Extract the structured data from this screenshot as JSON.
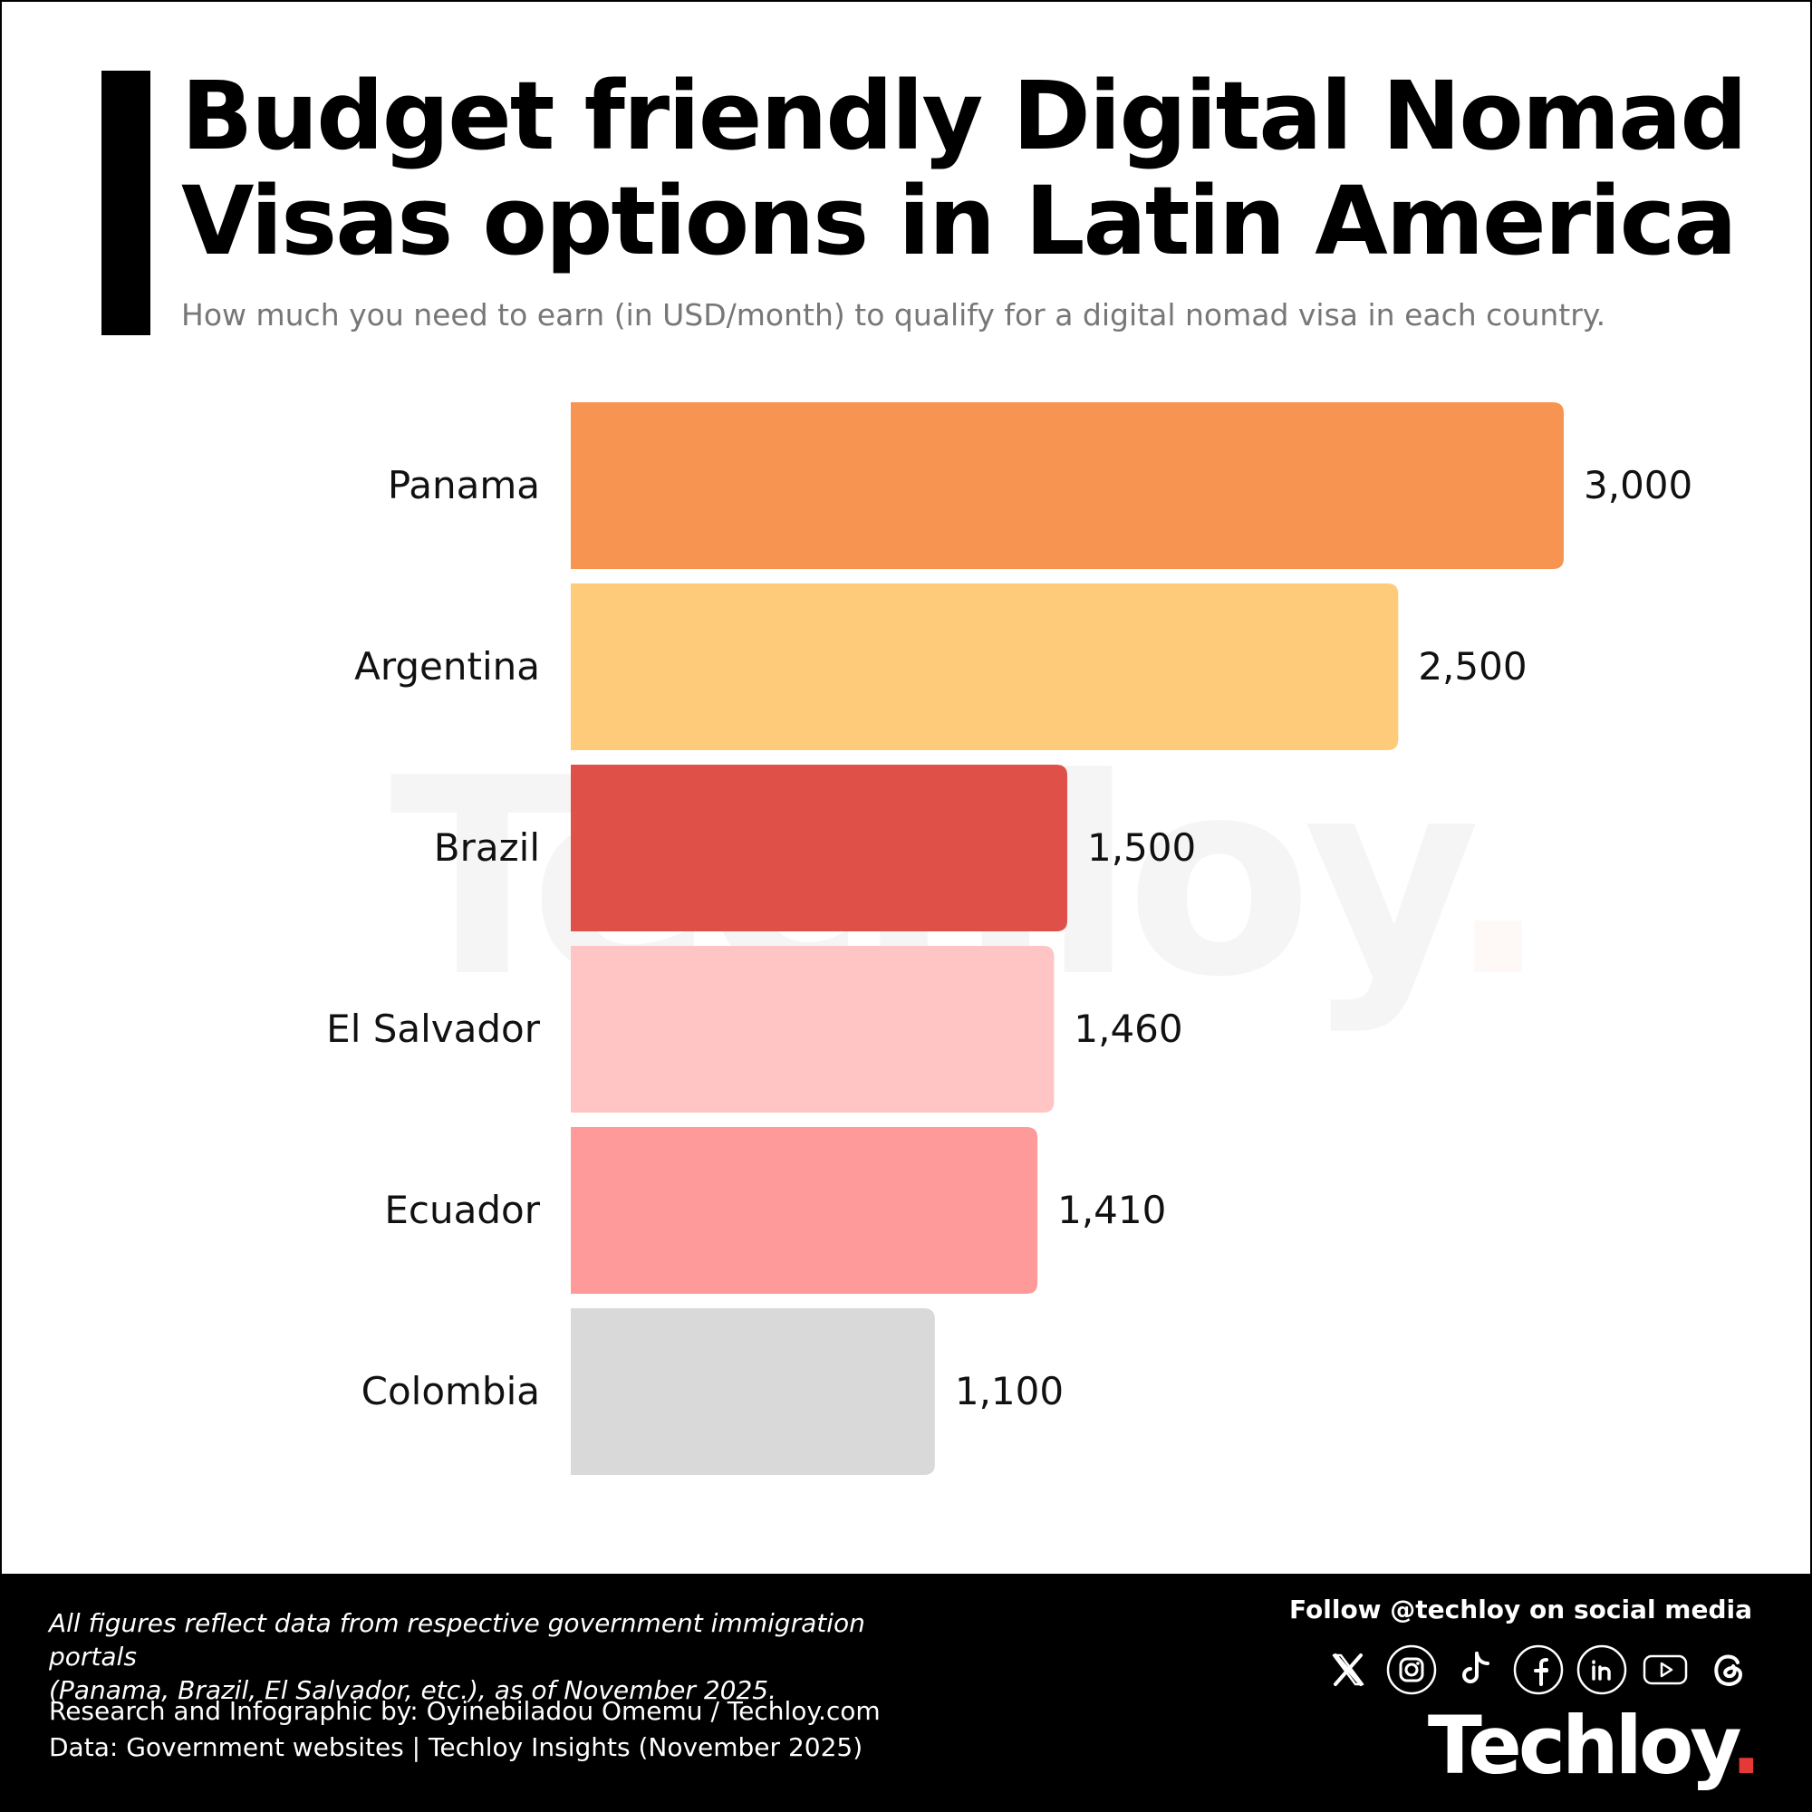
{
  "header": {
    "title_line1": "Budget friendly Digital Nomad",
    "title_line2": "Visas options in Latin America",
    "subtitle": "How much you need to earn (in USD/month) to qualify for a digital nomad visa in each country."
  },
  "watermark": {
    "text": "Techloy",
    "dot": "."
  },
  "chart_data": {
    "type": "bar",
    "orientation": "horizontal",
    "categories": [
      "Panama",
      "Argentina",
      "Brazil",
      "El Salvador",
      "Ecuador",
      "Colombia"
    ],
    "values": [
      3000,
      2500,
      1500,
      1460,
      1410,
      1100
    ],
    "value_labels": [
      "3,000",
      "2,500",
      "1,500",
      "1,460",
      "1,410",
      "1,100"
    ],
    "colors": [
      "#F79452",
      "#FECB7A",
      "#DE5048",
      "#FFC4C4",
      "#FF9A9A",
      "#D9D9D9"
    ],
    "title": "",
    "xlabel": "",
    "ylabel": "",
    "xlim": [
      0,
      3000
    ],
    "grid": false,
    "legend": "none"
  },
  "footer": {
    "note_line1": "All figures reflect data from respective government immigration portals",
    "note_line2": "(Panama, Brazil, El Salvador, etc.), as of November 2025.",
    "credit": "Research and Infographic by: Oyinebiladou Omemu / Techloy.com",
    "data_source": "Data: Government websites | Techloy Insights (November 2025)",
    "follow": "Follow @techloy on social media",
    "social_icons": [
      "x-icon",
      "instagram-icon",
      "tiktok-icon",
      "facebook-icon",
      "linkedin-icon",
      "youtube-icon",
      "threads-icon"
    ],
    "brand": "Techloy",
    "brand_dot": ".",
    "brand_dot_color": "#E53935"
  }
}
